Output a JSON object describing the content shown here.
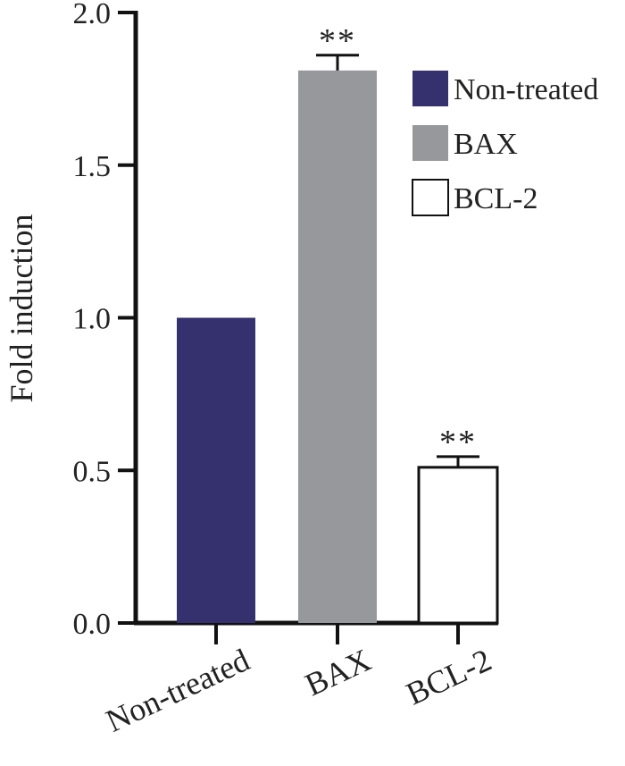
{
  "chart_data": {
    "type": "bar",
    "ylabel": "Fold induction",
    "ylim": [
      0,
      2.0
    ],
    "yticks": [
      "0.0",
      "0.5",
      "1.0",
      "1.5",
      "2.0"
    ],
    "categories": [
      "Non-treated",
      "BAX",
      "BCL-2"
    ],
    "values": [
      1.0,
      1.81,
      0.51
    ],
    "errors": [
      0,
      0.05,
      0.035
    ],
    "significance": [
      "",
      "**",
      "**"
    ],
    "colors": [
      "#35306e",
      "#97989c",
      "#ffffff"
    ],
    "legend": [
      {
        "label": "Non-treated",
        "color": "#35306e"
      },
      {
        "label": "BAX",
        "color": "#97989c"
      },
      {
        "label": "BCL-2",
        "color": "#ffffff"
      }
    ],
    "legend_position": "top-right",
    "grid": false
  }
}
